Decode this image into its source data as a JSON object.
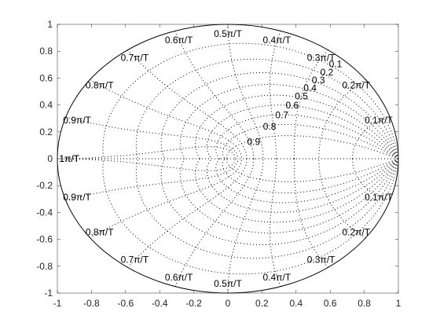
{
  "chart_data": {
    "type": "zgrid",
    "title": "",
    "xlabel": "",
    "ylabel": "",
    "xlim": [
      -1,
      1
    ],
    "ylim": [
      -1,
      1
    ],
    "xticks": [
      -1,
      -0.8,
      -0.6,
      -0.4,
      -0.2,
      0,
      0.2,
      0.4,
      0.6,
      0.8,
      1
    ],
    "yticks": [
      -1,
      -0.8,
      -0.6,
      -0.4,
      -0.2,
      0,
      0.2,
      0.4,
      0.6,
      0.8,
      1
    ],
    "xtick_labels": [
      "-1",
      "-0.8",
      "-0.6",
      "-0.4",
      "-0.2",
      "0",
      "0.2",
      "0.4",
      "0.6",
      "0.8",
      "1"
    ],
    "ytick_labels": [
      "-1",
      "-0.8",
      "-0.6",
      "-0.4",
      "-0.2",
      "0",
      "0.2",
      "0.4",
      "0.6",
      "0.8",
      "1"
    ],
    "damping_ratios": [
      0.1,
      0.2,
      0.3,
      0.4,
      0.5,
      0.6,
      0.7,
      0.8,
      0.9
    ],
    "damping_labels": [
      "0.1",
      "0.2",
      "0.3",
      "0.4",
      "0.5",
      "0.6",
      "0.7",
      "0.8",
      "0.9"
    ],
    "natural_frequencies": [
      0.1,
      0.2,
      0.3,
      0.4,
      0.5,
      0.6,
      0.7,
      0.8,
      0.9,
      1
    ],
    "frequency_labels": [
      "0.1π/T",
      "0.2π/T",
      "0.3π/T",
      "0.4π/T",
      "0.5π/T",
      "0.6π/T",
      "0.7π/T",
      "0.8π/T",
      "0.9π/T",
      "1π/T"
    ],
    "unit_circle": true,
    "grid_style": "dotted",
    "colors": {
      "axes": "#262626",
      "grid": "#000000",
      "circle": "#000000"
    }
  }
}
